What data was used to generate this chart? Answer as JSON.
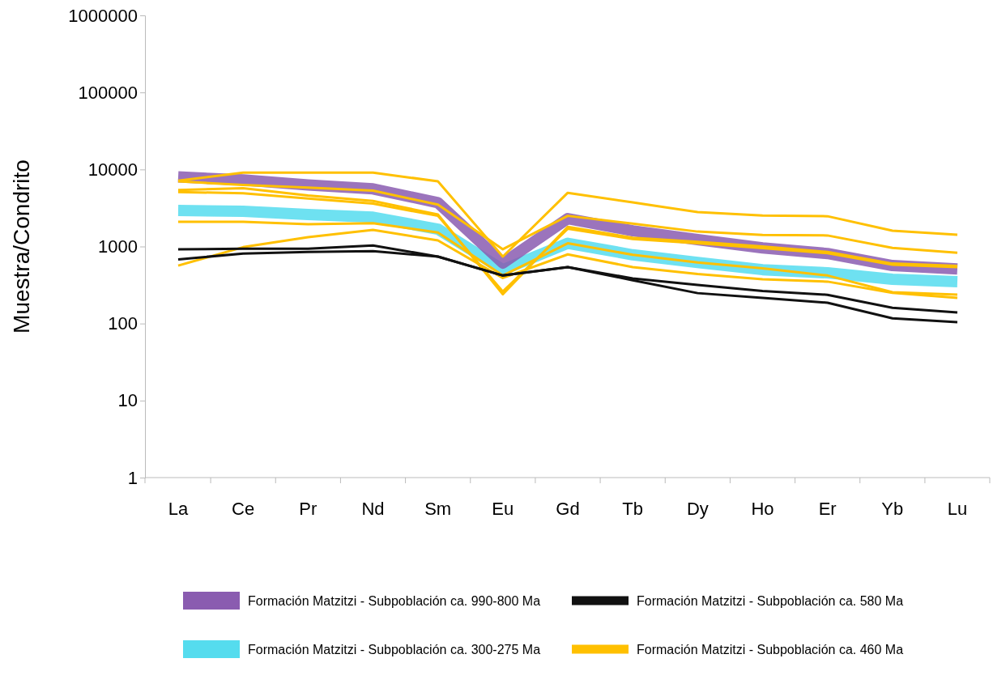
{
  "chart_data": {
    "type": "line",
    "ylabel": "Muestra/Condrito",
    "categories": [
      "La",
      "Ce",
      "Pr",
      "Nd",
      "Sm",
      "Eu",
      "Gd",
      "Tb",
      "Dy",
      "Ho",
      "Er",
      "Yb",
      "Lu"
    ],
    "log": "y",
    "ylim": [
      1,
      1000000
    ],
    "yticks": [
      1,
      10,
      100,
      1000,
      10000,
      100000,
      1000000
    ],
    "grid": false,
    "legend": "bottom",
    "marker": "none",
    "line_style": "solid",
    "series": [
      {
        "name": "Formación Matzitzi - Subpoblación ca. 990-800 Ma",
        "color": "#8a5cb0",
        "values": [
          8000,
          7300,
          6300,
          5600,
          3700,
          610,
          2300,
          1600,
          1230,
          960,
          810,
          565,
          510
        ]
      },
      {
        "name": "Formación Matzitzi - Subpoblación ca. 300-275 Ma",
        "color": "#55dcee",
        "values": [
          2930,
          2860,
          2600,
          2400,
          1680,
          500,
          1100,
          780,
          620,
          500,
          455,
          375,
          350
        ]
      },
      {
        "name": "Formación Matzitzi - Subpoblación ca. 580 Ma",
        "color": "#111111",
        "values": [
          920,
          935,
          935,
          1030,
          740,
          420,
          540,
          385,
          316,
          265,
          236,
          160,
          139
        ]
      },
      {
        "color": "#111111",
        "values": [
          680,
          810,
          850,
          870,
          740,
          420,
          540,
          365,
          248,
          215,
          186,
          117,
          104
        ]
      },
      {
        "name": "Formación Matzitzi - Subpoblación ca. 460 Ma",
        "color": "#ffc000",
        "values": [
          7160,
          9120,
          9120,
          9120,
          7000,
          740,
          4980,
          3730,
          2790,
          2530,
          2470,
          1600,
          1420
        ]
      },
      {
        "color": "#ffc000",
        "values": [
          7000,
          6300,
          5800,
          5300,
          3500,
          920,
          2500,
          1980,
          1560,
          1410,
          1390,
          960,
          830
        ]
      },
      {
        "color": "#ffc000",
        "values": [
          5400,
          5700,
          4600,
          3900,
          2600,
          240,
          1800,
          1300,
          1150,
          1000,
          850,
          600,
          560
        ]
      },
      {
        "color": "#ffc000",
        "values": [
          5100,
          4900,
          4200,
          3600,
          2500,
          260,
          1700,
          1250,
          1100,
          950,
          820,
          580,
          540
        ]
      },
      {
        "color": "#ffc000",
        "values": [
          2090,
          2090,
          1940,
          2000,
          1520,
          420,
          1100,
          780,
          620,
          520,
          420,
          255,
          237
        ]
      },
      {
        "color": "#ffc000",
        "values": [
          565,
          980,
          1320,
          1640,
          1200,
          390,
          790,
          540,
          440,
          375,
          350,
          250,
          215
        ]
      }
    ]
  }
}
